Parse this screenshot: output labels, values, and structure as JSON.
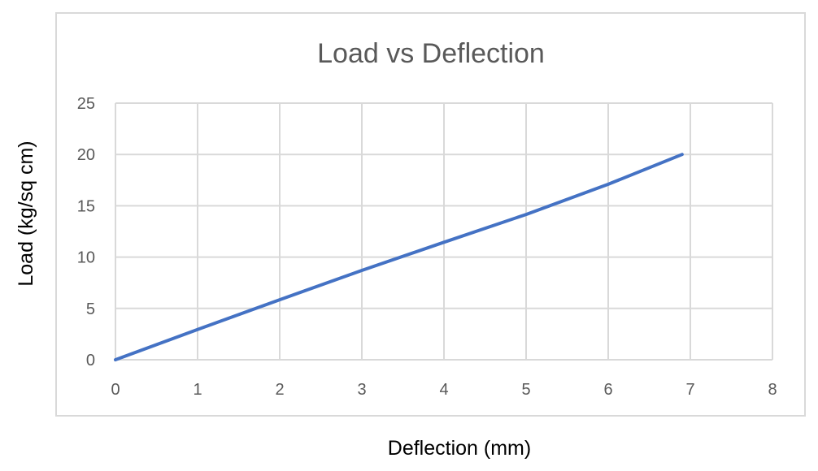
{
  "chart_data": {
    "type": "line",
    "title": "Load vs Deflection",
    "xlabel": "Deflection (mm)",
    "ylabel": "Load (kg/sq cm)",
    "xlim": [
      0,
      8
    ],
    "ylim": [
      0,
      25
    ],
    "x_ticks": [
      "0",
      "1",
      "2",
      "3",
      "4",
      "5",
      "6",
      "7",
      "8"
    ],
    "y_ticks": [
      "0",
      "5",
      "10",
      "15",
      "20",
      "25"
    ],
    "grid": true,
    "legend": "none",
    "series": [
      {
        "color": "#4472c4",
        "x": [
          0,
          1,
          2,
          3,
          4,
          5,
          6,
          6.9
        ],
        "y": [
          0,
          2.95,
          5.85,
          8.7,
          11.45,
          14.15,
          17.1,
          20.0
        ]
      }
    ]
  },
  "colors": {
    "grid": "#d9d9d9",
    "frame": "#d9d9d9",
    "line": "#4472c4"
  }
}
